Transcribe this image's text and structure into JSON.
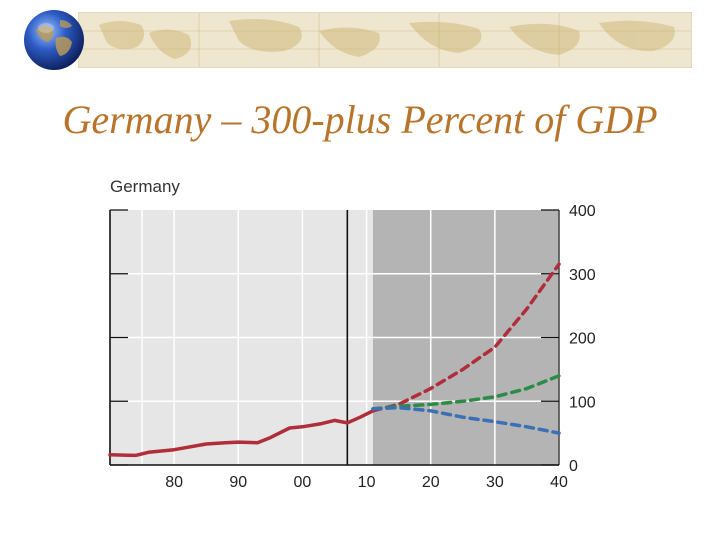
{
  "slide": {
    "title": "Germany – 300-plus Percent of GDP"
  },
  "icons": {
    "globe": "globe-icon",
    "banner": "world-map-banner"
  },
  "chart_data": {
    "type": "line",
    "title": "Germany",
    "xlabel": "",
    "ylabel": "",
    "x_tick_labels": [
      "80",
      "90",
      "00",
      "10",
      "20",
      "30",
      "40"
    ],
    "x_ticks": [
      1980,
      1990,
      2000,
      2010,
      2020,
      2030,
      2040
    ],
    "y_tick_labels": [
      "0",
      "100",
      "200",
      "300",
      "400"
    ],
    "y_ticks": [
      0,
      100,
      200,
      300,
      400
    ],
    "xlim": [
      1970,
      2040
    ],
    "ylim": [
      0,
      400
    ],
    "projection_start": 2011,
    "divider_year": 2007,
    "grid": true,
    "y_axis_side": "right",
    "series": [
      {
        "color": "#b02e3a",
        "style": "solid",
        "points": [
          [
            1970,
            16
          ],
          [
            1974,
            15
          ],
          [
            1976,
            20
          ],
          [
            1980,
            24
          ],
          [
            1985,
            33
          ],
          [
            1988,
            35
          ],
          [
            1990,
            36
          ],
          [
            1993,
            35
          ],
          [
            1995,
            43
          ],
          [
            1998,
            58
          ],
          [
            2000,
            60
          ],
          [
            2003,
            65
          ],
          [
            2005,
            70
          ],
          [
            2007,
            66
          ],
          [
            2009,
            75
          ],
          [
            2011,
            85
          ]
        ]
      },
      {
        "color": "#b02e3a",
        "style": "dashed",
        "points": [
          [
            2011,
            85
          ],
          [
            2015,
            95
          ],
          [
            2020,
            120
          ],
          [
            2025,
            150
          ],
          [
            2030,
            185
          ],
          [
            2035,
            245
          ],
          [
            2040,
            315
          ]
        ]
      },
      {
        "color": "#2e8b47",
        "style": "dashed",
        "points": [
          [
            2011,
            88
          ],
          [
            2015,
            92
          ],
          [
            2020,
            95
          ],
          [
            2025,
            100
          ],
          [
            2030,
            107
          ],
          [
            2035,
            120
          ],
          [
            2040,
            140
          ]
        ]
      },
      {
        "color": "#3b6fb6",
        "style": "dashed",
        "points": [
          [
            2011,
            88
          ],
          [
            2015,
            90
          ],
          [
            2020,
            85
          ],
          [
            2025,
            75
          ],
          [
            2030,
            68
          ],
          [
            2035,
            60
          ],
          [
            2040,
            50
          ]
        ]
      }
    ]
  }
}
